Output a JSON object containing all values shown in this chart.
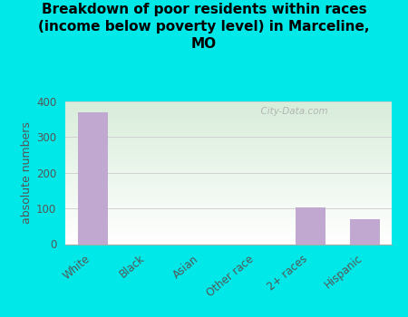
{
  "title": "Breakdown of poor residents within races\n(income below poverty level) in Marceline,\nMO",
  "categories": [
    "White",
    "Black",
    "Asian",
    "Other race",
    "2+ races",
    "Hispanic"
  ],
  "values": [
    370,
    0,
    0,
    0,
    102,
    70
  ],
  "bar_color": "#c0a8d0",
  "ylabel": "absolute numbers",
  "ylim": [
    0,
    400
  ],
  "yticks": [
    0,
    100,
    200,
    300,
    400
  ],
  "background_color": "#00e8e8",
  "plot_bg_color1": "#d8edda",
  "plot_bg_color2": "#ffffff",
  "watermark": "  City-Data.com",
  "title_fontsize": 11,
  "tick_fontsize": 8.5,
  "ylabel_fontsize": 9
}
